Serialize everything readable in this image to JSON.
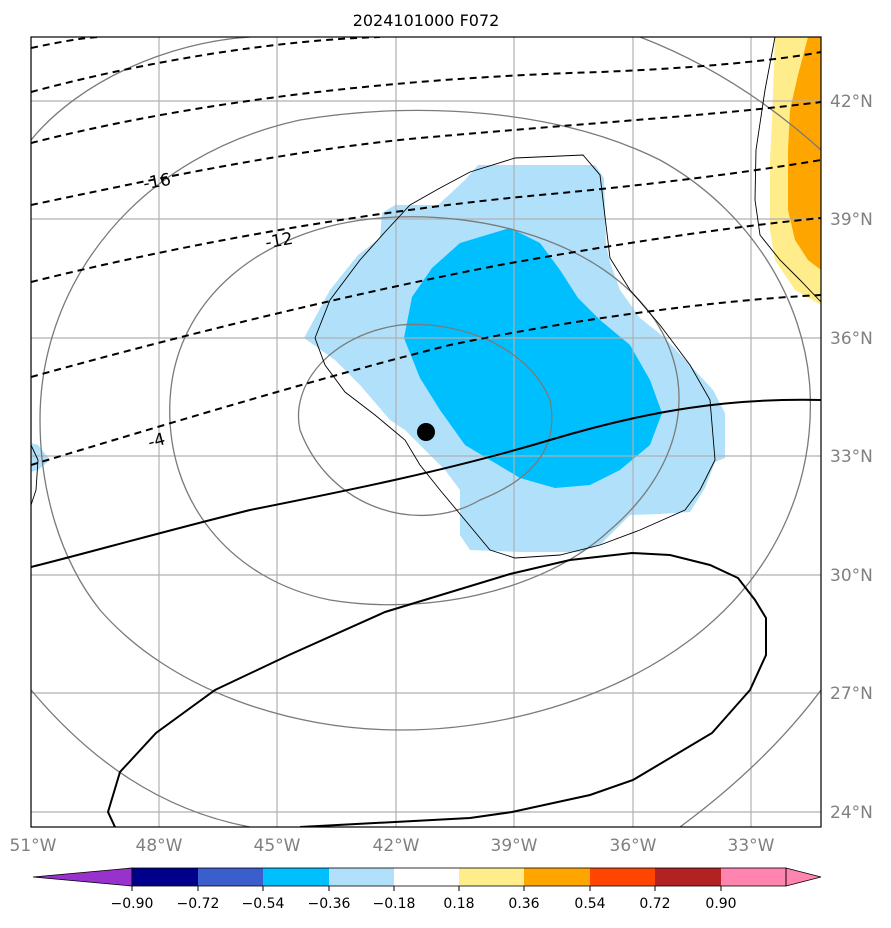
{
  "title": "2024101000 F072",
  "lon_labels": [
    {
      "value": -51,
      "label": "51°W"
    },
    {
      "value": -48,
      "label": "48°W"
    },
    {
      "value": -45,
      "label": "45°W"
    },
    {
      "value": -42,
      "label": "42°W"
    },
    {
      "value": -39,
      "label": "39°W"
    },
    {
      "value": -36,
      "label": "36°W"
    },
    {
      "value": -33,
      "label": "33°W"
    }
  ],
  "lat_labels": [
    {
      "value": 42,
      "label": "42°N"
    },
    {
      "value": 39,
      "label": "39°N"
    },
    {
      "value": 36,
      "label": "36°N"
    },
    {
      "value": 33,
      "label": "33°N"
    },
    {
      "value": 30,
      "label": "30°N"
    },
    {
      "value": 27,
      "label": "27°N"
    },
    {
      "value": 24,
      "label": "24°N"
    }
  ],
  "contour_labels": [
    {
      "text": "-16"
    },
    {
      "text": "-12"
    },
    {
      "text": "-4"
    }
  ],
  "colorbar": {
    "ticks": [
      "−0.90",
      "−0.72",
      "−0.54",
      "−0.36",
      "−0.18",
      "0.18",
      "0.36",
      "0.54",
      "0.72",
      "0.90"
    ],
    "colors": [
      "#9932cc",
      "#00008b",
      "#3a5fcd",
      "#00bfff",
      "#b0e0fa",
      "#ffffff",
      "#ffec8b",
      "#ffa500",
      "#ff4500",
      "#b22222",
      "#ff85b0"
    ]
  },
  "shading_colors": {
    "light_blue": "#b0e0fa",
    "blue": "#00bfff",
    "light_yellow": "#ffec8b",
    "orange": "#ffa500"
  },
  "center_marker": {
    "lon": -41.0,
    "lat": 33.6
  }
}
